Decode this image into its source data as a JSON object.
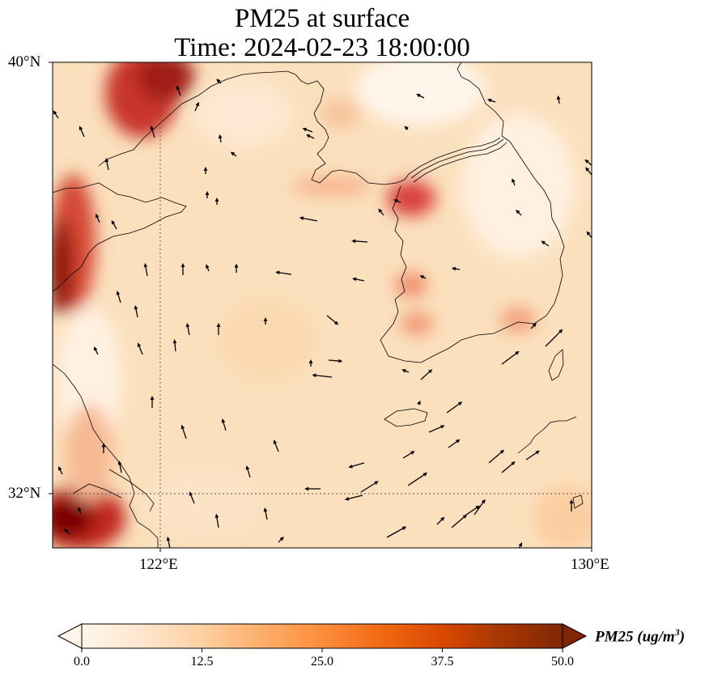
{
  "title": {
    "line1": "PM25 at surface",
    "line2": "Time: 2024-02-23 18:00:00"
  },
  "map": {
    "lat_ticks": [
      "40°N",
      "32°N"
    ],
    "lon_ticks": [
      "122°E",
      "130°E"
    ],
    "extent": {
      "lon": [
        120,
        130
      ],
      "lat": [
        31,
        40
      ]
    },
    "gridlines": {
      "lon": [
        122
      ],
      "lat": [
        32
      ],
      "style": "dotted"
    },
    "overlay": "wind vectors",
    "coastlines": true
  },
  "colorbar": {
    "label_main": "PM25 (ug/m",
    "label_sup": "3",
    "label_end": ")",
    "ticks": [
      "0.0",
      "12.5",
      "25.0",
      "37.5",
      "50.0"
    ],
    "min": 0,
    "max": 50,
    "extend": "both",
    "colormap": [
      "#fff5eb",
      "#fee6ce",
      "#fdd0a2",
      "#fdae6b",
      "#fd8d3c",
      "#f16913",
      "#d94801",
      "#a63603",
      "#7f2704"
    ]
  },
  "colors": {
    "map_base": "#fbe2c2",
    "high_pm": "#8b0000",
    "coastline": "#000000"
  }
}
